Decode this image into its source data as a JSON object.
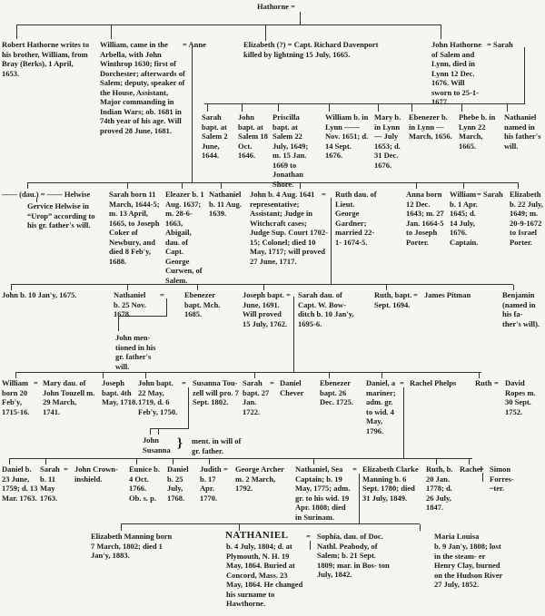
{
  "accent_colors": {
    "paper": "#f6f5f1",
    "ink": "#1c1b18",
    "line": "#33322e"
  },
  "p": {
    "eq": "=",
    "brace": "}",
    "root": "Hathorne =",
    "robert": "Robert Hathorne writes to his brother, William, from Bray (Berks), 1 April, 1653.",
    "william1": "William, came in the Arbella, with John Winthrop 1630; first of Dorchester; afterwards of Salem; deputy, speaker of the House, Assistant, Major commanding in Indian Wars; ob. 1681 in 74th year of his age.  Will proved 28 June, 1681.",
    "anne": "= Anne",
    "elizabeth1": "Elizabeth (?) = Capt. Richard Davenport killed by lightning 15 July, 1665.",
    "john_lynn": "John Hathorne of Salem and Lynn, died in Lynn 12 Dec. 1676.  Will sworn to 25-1-1677.",
    "sarah_w": "= Sarah",
    "sarah2": "Sarah bapt. at Salem 2 June, 1644.",
    "john2": "John bapt. at Salem 18 Oct. 1646.",
    "priscilla": "Priscilla bapt. at Salem 22 July, 1649; m. 15 Jan. 1669 to Jonathan Shore.",
    "william2": "William b. in Lynn —— Nov. 1651; d. 14 Sept. 1676.",
    "mary2": "Mary b. in Lynn — July 1653; d. 31 Dec. 1676.",
    "ebenezer2": "Ebenezer b. in Lynn — March, 1656.",
    "phebe": "Phebe b. in Lynn 22 March, 1665.",
    "nathaniel2": "Nathaniel named in his father's will.",
    "dau": "—— (dau.) = —— Helwise",
    "gervice": "Gervice Helwise in “Urop” according to his gr. father's will.",
    "sarah3": "Sarah born 11 March, 1644-5; m. 13 April, 1665, to Joseph Coker of Newbury, and died 8 Feb'y, 1688.",
    "eleazer": "Eleazer b. 1 Aug. 1637; m. 28-6-1663, Abigail, dau. of Capt. George Curwen, of Salem.",
    "nathaniel3": "Nathaniel b. 11 Aug. 1639.",
    "john3": "John b. 4 Aug. 1641 representative; Assistant; Judge in Witchcraft cases; Judge Sup. Court 1702-15; Colonel; died 10 May, 1717; will proved 27 June, 1717.",
    "ruth3": "Ruth dau. of Lieut. George Gardner; married 22-1- 1674-5.",
    "anna3": "Anna born 12 Dec. 1643; m. 27 Jan. 1664-5 to Joseph Porter.",
    "william3": "William b. 1 Apr. 1645; d. 14 July, 1676. Captain.",
    "sarah_w3": "= Sarah",
    "elizabeth3": "Elizabeth b. 22 July, 1649; m. 20-9-1672 to Israel Porter.",
    "john4": "John b. 10 Jan'y, 1675.",
    "nathaniel4": "Nathaniel b. 25 Nov. 1678.",
    "ebenezer4": "Ebenezer bapt. Mch. 1685.",
    "john_ment": "John men- tioned in his gr. father's will.",
    "joseph4": "Joseph bapt. June, 1691.  Will proved 15 July, 1762.",
    "sarah_bowditch": "Sarah dau. of Capt. W. Bow- ditch b. 10 Jan'y, 1695-6.",
    "ruth4": "Ruth, bapt. Sept. 1694.",
    "pitman": "James Pitman",
    "benjamin": "Benjamin (named in his fa- ther's will).",
    "william5": "William born 20 Feb'y, 1715-16.",
    "mary_touzell": "Mary dau. of John Touzell m. 29 March, 1741.",
    "joseph5": "Joseph bapt. 4th May, 1718.",
    "john5": "John bapt. 22 May, 1719, d. 6 Feb'y, 1750.",
    "susanna_touzell": "Susanna Tou- zell will pro. 7 Sept. 1802.",
    "john_susanna": "John Susanna",
    "ment_will": "ment. in will of gr. father.",
    "sarah5": "Sarah bapt. 27 Jan. 1722.",
    "chever": "Daniel Chever",
    "ebenezer5": "Ebenezer bapt. 26 Dec. 1725.",
    "daniel5": "Daniel, a mariner; adm. gr. to wid. 4 May, 1796.",
    "rachel_phelps": "Rachel Phelps",
    "ruth5": "Ruth",
    "ropes": "David Ropes m. 30 Sept. 1752.",
    "daniel6": "Daniel b. 23 June, 1759; d. 13 Mar. 1763.",
    "sarah6": "Sarah b. 11 May 1763.",
    "crowninshield": "John Crown- inshield.",
    "eunice": "Eunice b. 4 Oct. 1766. Ob. s. p.",
    "daniel6b": "Daniel b. 25 July, 1768.",
    "judith": "Judith b. 17 Apr. 1770.",
    "archer": "George Archer m. 2 March, 1792.",
    "nathaniel6": "Nathaniel, Sea Captain; b. 19 May, 1775; adm. gr. to his wid. 19 Apr. 1808; died in Surinam.",
    "manning": "Elizabeth Clarke Manning b. 6 Sept. 1780; died 31 July, 1849.",
    "ruth6": "Ruth, b. 20 Jan. 1778; d. 26 July, 1847.",
    "rachel6": "Rachel",
    "forrester": "Simon Forres- ~ter.",
    "eliz_manning": "Elizabeth Manning born 7 March, 1802; died 1 Jan'y, 1883.",
    "hawthorne_name": "NATHANIEL",
    "hawthorne": "b. 4 July, 1804; d. at Plymouth, N. H. 19 May, 1864.  Buried at Concord, Mass. 23 May, 1864.  He changed his surname to Hawthorne.",
    "sophia": "Sophia, dau. of Doc. Nathl. Peabody, of Salem; b. 21 Sept. 1809; mar. in Bos- ton July, 1842.",
    "maria_name": "Maria Louisa",
    "maria": "b. 9 Jan'y, 1808; lost in the steam- er Henry Clay, burned on the Hudson River 27 July, 1852."
  }
}
